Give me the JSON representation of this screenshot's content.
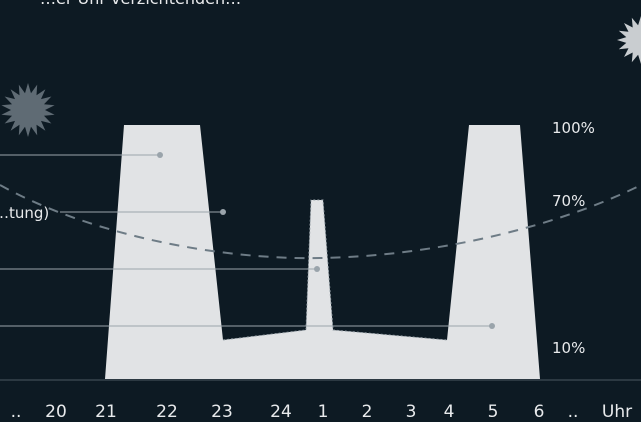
{
  "header_text": "…er Uhr verzichtenden…",
  "percent_labels": [
    "100%",
    "70%",
    "10%"
  ],
  "side_label": "…tung)",
  "hour_ticks": [
    "..",
    "20",
    "21",
    "22",
    "23",
    "24",
    "1",
    "2",
    "3",
    "4",
    "5",
    "6",
    "..",
    "Uhr"
  ],
  "colors": {
    "background": "#0d1a23",
    "fill": "#e1e3e5",
    "dashed_curve": "#6e7c86",
    "leader_line": "#9aa4ab",
    "burst_dark": "#5f6b74",
    "burst_light": "#c9cdd0"
  },
  "icons": [
    "starburst-icon",
    "starburst-icon"
  ]
}
